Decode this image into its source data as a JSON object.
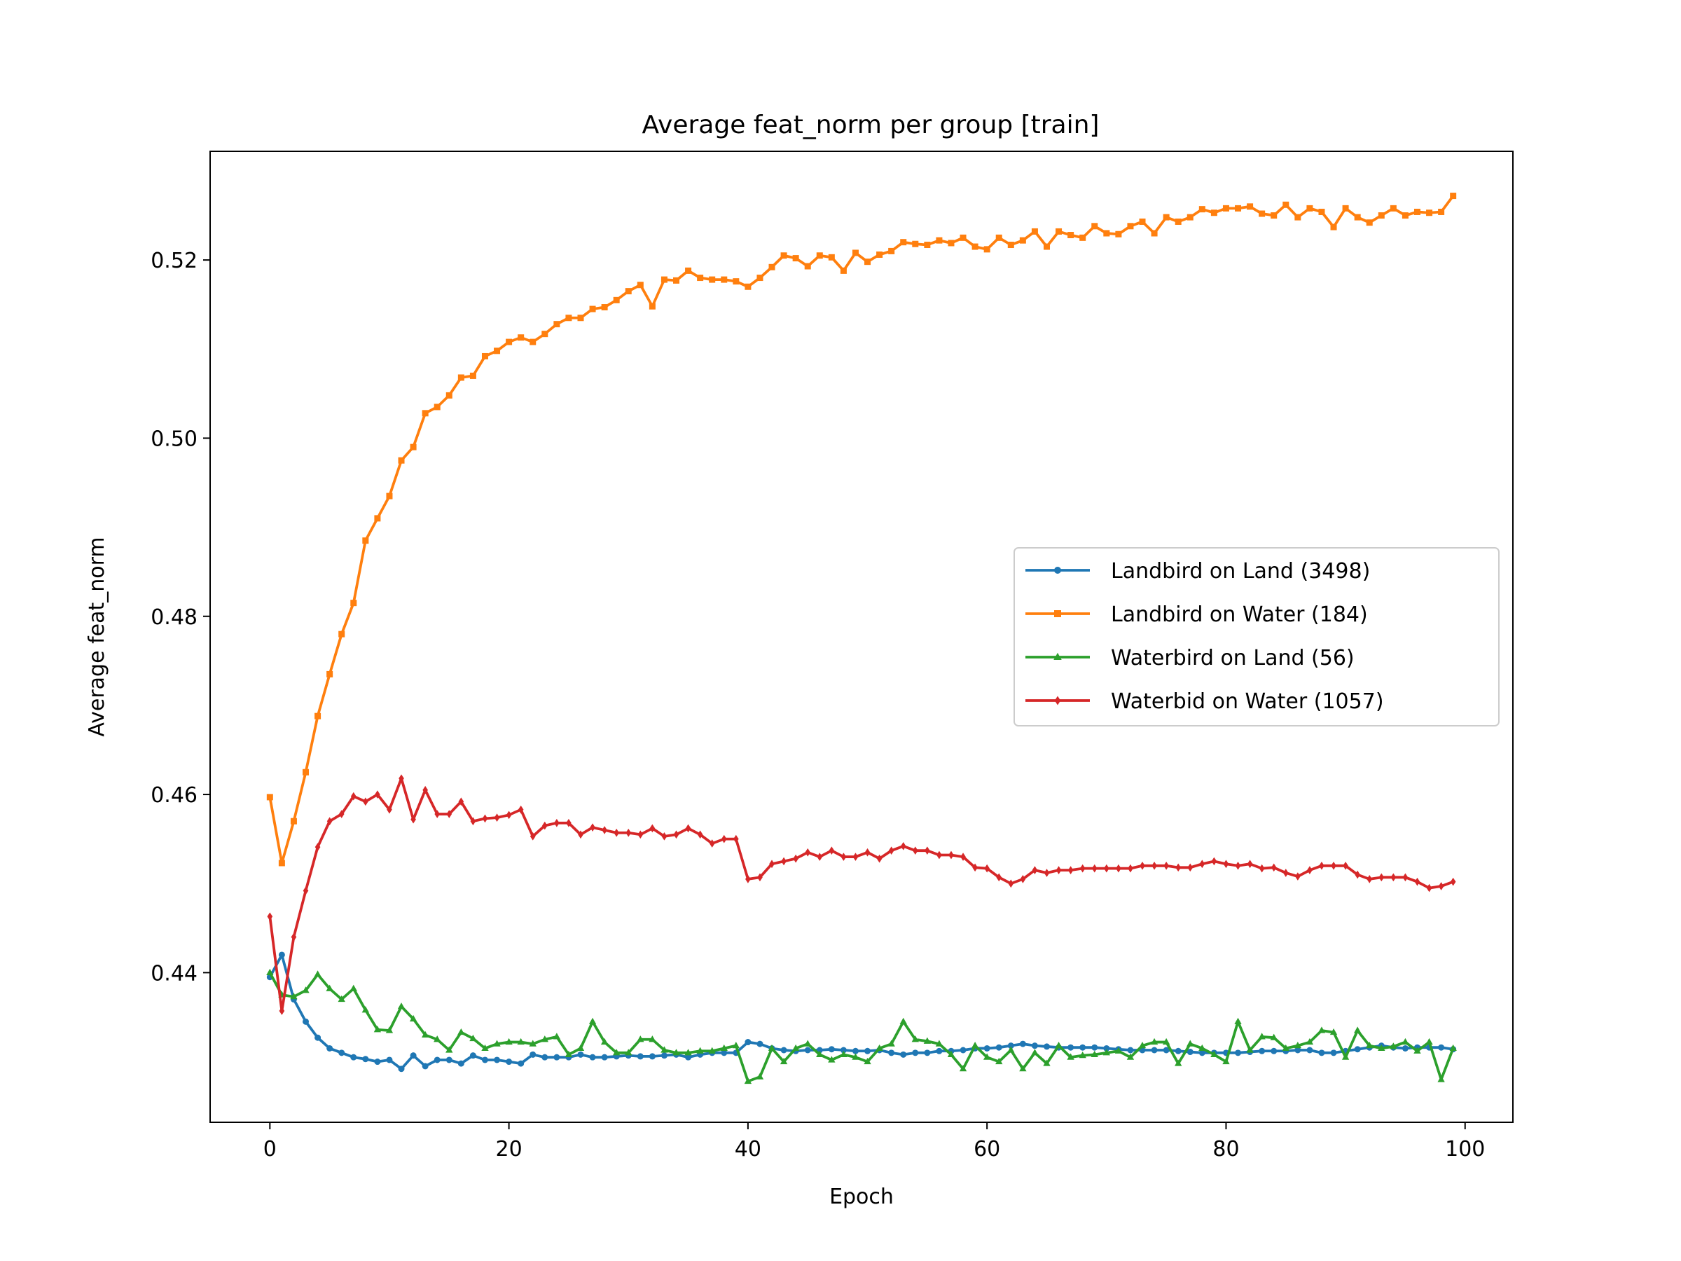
{
  "chart_data": {
    "type": "line",
    "title": "Average feat_norm per group [train]",
    "xlabel": "Epoch",
    "ylabel": "Average feat_norm",
    "xlim": [
      -5,
      104
    ],
    "ylim": [
      0.4232,
      0.5322
    ],
    "xticks": [
      0,
      20,
      40,
      60,
      80,
      100
    ],
    "yticks": [
      0.44,
      0.46,
      0.48,
      0.5,
      0.52
    ],
    "ytick_labels": [
      "0.44",
      "0.46",
      "0.48",
      "0.50",
      "0.52"
    ],
    "grid": false,
    "legend_position": "center-right",
    "series": [
      {
        "name": "Landbird on Land (3498)",
        "color": "#1f77b4",
        "marker": "circle",
        "values": [
          0.4395,
          0.442,
          0.437,
          0.4345,
          0.4327,
          0.4315,
          0.431,
          0.4305,
          0.4303,
          0.43,
          0.4302,
          0.4292,
          0.4307,
          0.4295,
          0.4302,
          0.4302,
          0.4298,
          0.4307,
          0.4302,
          0.4302,
          0.43,
          0.4298,
          0.4308,
          0.4305,
          0.4305,
          0.4305,
          0.4308,
          0.4305,
          0.4305,
          0.4306,
          0.4307,
          0.4306,
          0.4306,
          0.4307,
          0.4308,
          0.4305,
          0.4308,
          0.431,
          0.431,
          0.431,
          0.4322,
          0.432,
          0.4315,
          0.4313,
          0.4312,
          0.4313,
          0.4313,
          0.4314,
          0.4313,
          0.4312,
          0.4312,
          0.4313,
          0.431,
          0.4308,
          0.431,
          0.431,
          0.4312,
          0.4312,
          0.4313,
          0.4315,
          0.4315,
          0.4316,
          0.4318,
          0.432,
          0.4318,
          0.4317,
          0.4316,
          0.4316,
          0.4316,
          0.4316,
          0.4315,
          0.4314,
          0.4313,
          0.4313,
          0.4313,
          0.4313,
          0.4312,
          0.4311,
          0.431,
          0.431,
          0.431,
          0.431,
          0.4311,
          0.4312,
          0.4312,
          0.4312,
          0.4313,
          0.4313,
          0.431,
          0.431,
          0.4312,
          0.4314,
          0.4316,
          0.4318,
          0.4316,
          0.4315,
          0.4316,
          0.4316,
          0.4316,
          0.4314
        ]
      },
      {
        "name": "Landbird on Water (184)",
        "color": "#ff7f0e",
        "marker": "square",
        "values": [
          0.4597,
          0.4523,
          0.457,
          0.4625,
          0.4688,
          0.4735,
          0.478,
          0.4815,
          0.4885,
          0.491,
          0.4935,
          0.4975,
          0.499,
          0.5028,
          0.5035,
          0.5048,
          0.5068,
          0.507,
          0.5092,
          0.5098,
          0.5108,
          0.5113,
          0.5108,
          0.5117,
          0.5128,
          0.5135,
          0.5135,
          0.5145,
          0.5147,
          0.5155,
          0.5165,
          0.5172,
          0.5148,
          0.5178,
          0.5177,
          0.5188,
          0.518,
          0.5178,
          0.5178,
          0.5176,
          0.517,
          0.518,
          0.5192,
          0.5205,
          0.5202,
          0.5193,
          0.5205,
          0.5203,
          0.5188,
          0.5208,
          0.5198,
          0.5206,
          0.521,
          0.522,
          0.5218,
          0.5217,
          0.5222,
          0.5219,
          0.5225,
          0.5215,
          0.5212,
          0.5225,
          0.5217,
          0.5222,
          0.5232,
          0.5215,
          0.5232,
          0.5228,
          0.5225,
          0.5238,
          0.523,
          0.5229,
          0.5238,
          0.5243,
          0.523,
          0.5248,
          0.5243,
          0.5248,
          0.5257,
          0.5253,
          0.5258,
          0.5258,
          0.526,
          0.5252,
          0.525,
          0.5262,
          0.5248,
          0.5258,
          0.5254,
          0.5237,
          0.5258,
          0.5248,
          0.5242,
          0.525,
          0.5258,
          0.525,
          0.5254,
          0.5253,
          0.5254,
          0.5272
        ]
      },
      {
        "name": "Waterbird on Land (56)",
        "color": "#2ca02c",
        "marker": "triangle",
        "values": [
          0.44,
          0.4375,
          0.4373,
          0.438,
          0.4398,
          0.4382,
          0.437,
          0.4382,
          0.4358,
          0.4336,
          0.4335,
          0.4362,
          0.4348,
          0.433,
          0.4325,
          0.4313,
          0.4333,
          0.4326,
          0.4315,
          0.432,
          0.4322,
          0.4322,
          0.432,
          0.4325,
          0.4328,
          0.4308,
          0.4315,
          0.4345,
          0.4322,
          0.431,
          0.431,
          0.4325,
          0.4325,
          0.4313,
          0.431,
          0.431,
          0.4312,
          0.4312,
          0.4315,
          0.4318,
          0.4278,
          0.4283,
          0.4315,
          0.43,
          0.4315,
          0.432,
          0.4308,
          0.4302,
          0.4308,
          0.4305,
          0.43,
          0.4315,
          0.432,
          0.4345,
          0.4325,
          0.4323,
          0.432,
          0.4308,
          0.4292,
          0.4318,
          0.4305,
          0.43,
          0.4313,
          0.4292,
          0.431,
          0.4298,
          0.4318,
          0.4305,
          0.4307,
          0.4308,
          0.431,
          0.4312,
          0.4305,
          0.4318,
          0.4322,
          0.4322,
          0.4298,
          0.432,
          0.4315,
          0.4308,
          0.43,
          0.4345,
          0.4313,
          0.4328,
          0.4327,
          0.4315,
          0.4318,
          0.4322,
          0.4335,
          0.4333,
          0.4305,
          0.4335,
          0.4318,
          0.4315,
          0.4317,
          0.4322,
          0.4312,
          0.4322,
          0.428,
          0.4315
        ]
      },
      {
        "name": "Waterbid on Water (1057)",
        "color": "#d62728",
        "marker": "diamond",
        "values": [
          0.4463,
          0.4357,
          0.444,
          0.4492,
          0.4541,
          0.457,
          0.4578,
          0.4598,
          0.4592,
          0.46,
          0.4583,
          0.4618,
          0.4572,
          0.4605,
          0.4578,
          0.4578,
          0.4592,
          0.457,
          0.4573,
          0.4574,
          0.4577,
          0.4583,
          0.4553,
          0.4565,
          0.4568,
          0.4568,
          0.4555,
          0.4563,
          0.456,
          0.4557,
          0.4557,
          0.4555,
          0.4562,
          0.4553,
          0.4555,
          0.4562,
          0.4555,
          0.4545,
          0.455,
          0.455,
          0.4505,
          0.4507,
          0.4522,
          0.4525,
          0.4528,
          0.4535,
          0.453,
          0.4537,
          0.453,
          0.453,
          0.4535,
          0.4528,
          0.4537,
          0.4542,
          0.4537,
          0.4537,
          0.4532,
          0.4532,
          0.453,
          0.4518,
          0.4517,
          0.4507,
          0.45,
          0.4505,
          0.4515,
          0.4512,
          0.4515,
          0.4515,
          0.4517,
          0.4517,
          0.4517,
          0.4517,
          0.4517,
          0.452,
          0.452,
          0.452,
          0.4518,
          0.4518,
          0.4522,
          0.4525,
          0.4522,
          0.452,
          0.4522,
          0.4517,
          0.4518,
          0.4512,
          0.4508,
          0.4515,
          0.452,
          0.452,
          0.452,
          0.451,
          0.4505,
          0.4507,
          0.4507,
          0.4507,
          0.4502,
          0.4495,
          0.4497,
          0.4502
        ]
      }
    ]
  }
}
